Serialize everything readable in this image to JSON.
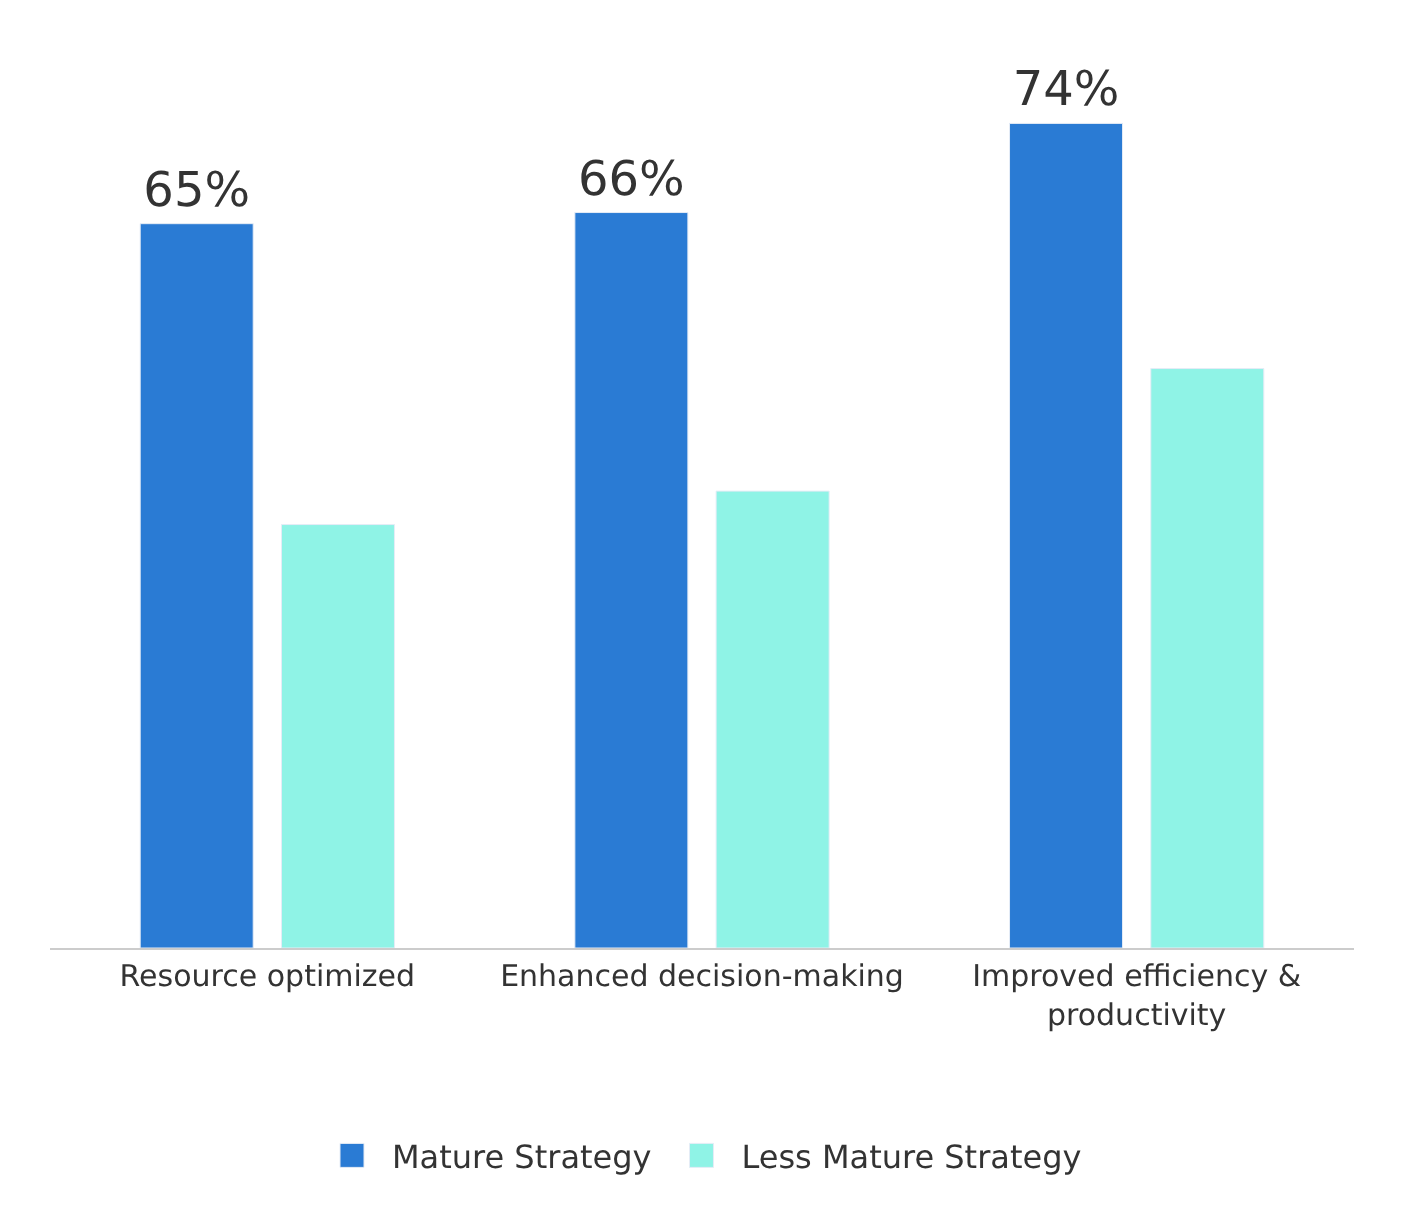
{
  "chart_data": {
    "type": "bar",
    "categories": [
      "Resource optimized",
      "Enhanced decision-making",
      "Improved efficiency & productivity"
    ],
    "series": [
      {
        "name": "Mature Strategy",
        "color": "#2a7bd4",
        "values": [
          65,
          66,
          74
        ],
        "value_labels": [
          "65%",
          "66%",
          "74%"
        ]
      },
      {
        "name": "Less Mature Strategy",
        "color": "#8ff3e6",
        "values": [
          38,
          41,
          52
        ],
        "value_labels": [
          null,
          null,
          null
        ]
      }
    ],
    "legend": "bottom",
    "tick_labels": "x"
  }
}
